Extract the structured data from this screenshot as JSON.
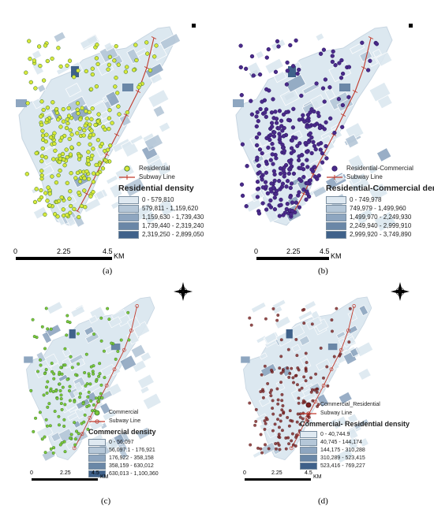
{
  "panels": [
    {
      "id": "a",
      "label": "(a)",
      "point_label": "Residential",
      "point_fill": "#d8e83a",
      "point_stroke": "#2f6b2a",
      "line_label": "Subway Line",
      "density_title": "Residential density",
      "classes": [
        "0 - 579,810",
        "579,811 - 1,159,620",
        "1,159,630 - 1,739,430",
        "1,739,440 - 2,319,240",
        "2,319,250 - 2,899,050"
      ],
      "scale_ticks": [
        "0",
        "2.25",
        "4.5"
      ],
      "scale_unit": "KM",
      "north_arrow": false
    },
    {
      "id": "b",
      "label": "(b)",
      "point_label": "Residential-Commercial",
      "point_fill": "#4a2a8a",
      "point_stroke": "#2a1660",
      "line_label": "Subway Line",
      "density_title": "Residential-Commercial density",
      "classes": [
        "0 - 749,978",
        "749,979 - 1,499,960",
        "1,499,970 - 2,249,930",
        "2,249,940 - 2,999,910",
        "2,999,920 - 3,749,890"
      ],
      "scale_ticks": [
        "0",
        "2.25",
        "4.5"
      ],
      "scale_unit": "KM",
      "north_arrow": false
    },
    {
      "id": "c",
      "label": "(c)",
      "point_label": "Commercial",
      "point_fill": "#7cc83a",
      "point_stroke": "#2f6b2a",
      "line_label": "Subway Line",
      "density_title": "Commercial density",
      "classes": [
        "0 - 56,097",
        "56,097.1 - 176,921",
        "176,922 - 358,158",
        "358,159 - 630,012",
        "630,013 - 1,100,360"
      ],
      "scale_ticks": [
        "0",
        "2.25",
        "4.5"
      ],
      "scale_unit": "KM",
      "north_arrow": true
    },
    {
      "id": "d",
      "label": "(d)",
      "point_label": "Commercial_Residential",
      "point_fill": "#7a2020",
      "point_stroke": "#4a1010",
      "line_label": "Subway Line",
      "density_title": "Commercial- Residential density",
      "classes": [
        "0 - 40,744.9",
        "40,745 - 144,174",
        "144,175 - 310,288",
        "310,289 - 523,415",
        "523,416 - 769,227"
      ],
      "scale_ticks": [
        "0",
        "2.25",
        "4.5"
      ],
      "scale_unit": "KM",
      "north_arrow": true
    }
  ],
  "colors": {
    "district_fill": "#dce8f0",
    "district_stroke": "#ffffff",
    "class_colors": [
      "#dfe9f1",
      "#b5c7d8",
      "#8ea6c0",
      "#6a87a7",
      "#3f618a"
    ],
    "subway": "#c0392b"
  },
  "icons": {
    "north_arrow": "compass-rose-icon",
    "subway_symbol": "rail-line-icon"
  }
}
